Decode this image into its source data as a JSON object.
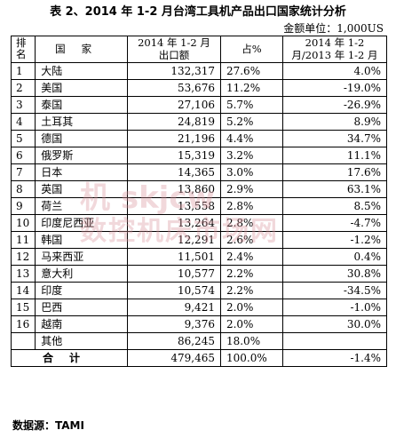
{
  "title": "表 2、2014 年 1-2 月台湾工具机产品出口国家统计分析",
  "unit": "金额单位：1,000US",
  "headers": {
    "idx": "排名",
    "country": "国家",
    "value": "2014 年 1-2 月出口额",
    "share": "占%",
    "growth": "2014 年 1-2 月/2013 年 1-2 月"
  },
  "rows": [
    {
      "rank": "1",
      "country": "大陆",
      "value": "132,317",
      "share": "27.6%",
      "growth": "4.0%"
    },
    {
      "rank": "2",
      "country": "美国",
      "value": "53,676",
      "share": "11.2%",
      "growth": "-19.0%"
    },
    {
      "rank": "3",
      "country": "泰国",
      "value": "27,106",
      "share": "5.7%",
      "growth": "-26.9%"
    },
    {
      "rank": "4",
      "country": "土耳其",
      "value": "24,819",
      "share": "5.2%",
      "growth": "8.9%"
    },
    {
      "rank": "5",
      "country": "德国",
      "value": "21,196",
      "share": "4.4%",
      "growth": "34.7%"
    },
    {
      "rank": "6",
      "country": "俄罗斯",
      "value": "15,319",
      "share": "3.2%",
      "growth": "11.1%"
    },
    {
      "rank": "7",
      "country": "日本",
      "value": "14,365",
      "share": "3.0%",
      "growth": "17.6%"
    },
    {
      "rank": "8",
      "country": "英国",
      "value": "13,860",
      "share": "2.9%",
      "growth": "63.1%"
    },
    {
      "rank": "9",
      "country": "荷兰",
      "value": "13,558",
      "share": "2.8%",
      "growth": "8.5%"
    },
    {
      "rank": "10",
      "country": "印度尼西亚",
      "value": "13,264",
      "share": "2.8%",
      "growth": "-4.7%"
    },
    {
      "rank": "11",
      "country": "韩国",
      "value": "12,291",
      "share": "2.6%",
      "growth": "-1.2%"
    },
    {
      "rank": "12",
      "country": "马来西亚",
      "value": "11,501",
      "share": "2.4%",
      "growth": "0.4%"
    },
    {
      "rank": "13",
      "country": "意大利",
      "value": "10,577",
      "share": "2.2%",
      "growth": "30.8%"
    },
    {
      "rank": "14",
      "country": "印度",
      "value": "10,574",
      "share": "2.2%",
      "growth": "-34.5%"
    },
    {
      "rank": "15",
      "country": "巴西",
      "value": "9,421",
      "share": "2.0%",
      "growth": "-1.0%"
    },
    {
      "rank": "16",
      "country": "越南",
      "value": "9,376",
      "share": "2.0%",
      "growth": "30.0%"
    },
    {
      "rank": "",
      "country": "其他",
      "value": "86,245",
      "share": "18.0%",
      "growth": ""
    }
  ],
  "total": {
    "label": "合计",
    "value": "479,465",
    "share": "100.0%",
    "growth": "-1.4%"
  },
  "source": "数据源：TAMI",
  "watermark": {
    "line1": "机 skjcw",
    "line2": "数控机床市场网"
  }
}
